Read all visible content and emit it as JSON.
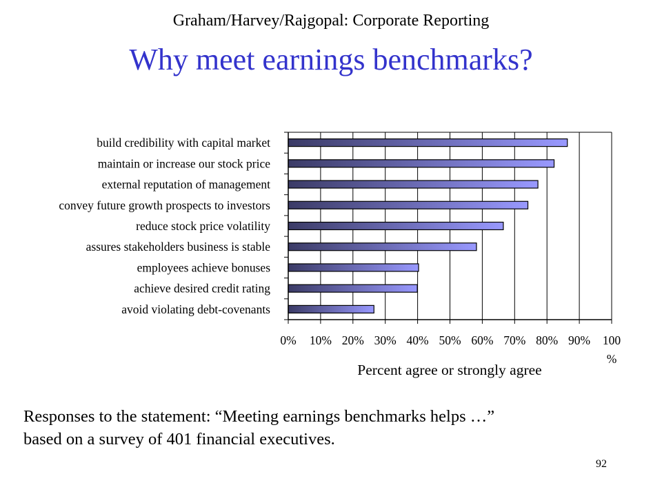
{
  "slide": {
    "header": "Graham/Harvey/Rajgopal: Corporate Reporting",
    "title": "Why meet earnings benchmarks?",
    "caption_line1": "Responses to the statement: “Meeting earnings benchmarks helps …”",
    "caption_line2": "based on a survey of 401 financial executives.",
    "page_number": "92"
  },
  "chart_data": {
    "type": "bar",
    "orientation": "horizontal",
    "categories": [
      "build credibility with capital market",
      "maintain or increase our stock price",
      "external reputation of management",
      "convey future growth prospects to investors",
      "reduce stock price volatility",
      "assures stakeholders business is stable",
      "employees achieve bonuses",
      "achieve desired credit rating",
      "avoid violating debt-covenants"
    ],
    "values": [
      86.3,
      82.2,
      77.2,
      74.1,
      66.5,
      58.2,
      40.3,
      39.9,
      26.5
    ],
    "xlabel": "Percent agree or strongly agree",
    "xlim": [
      0,
      100
    ],
    "x_ticks": [
      "0%",
      "10%",
      "20%",
      "30%",
      "40%",
      "50%",
      "60%",
      "70%",
      "80%",
      "90%",
      "100"
    ],
    "x_tick_suffix": "%",
    "grid": "vertical",
    "bar_color_start": "#3b3b66",
    "bar_color_end": "#9999ff"
  }
}
